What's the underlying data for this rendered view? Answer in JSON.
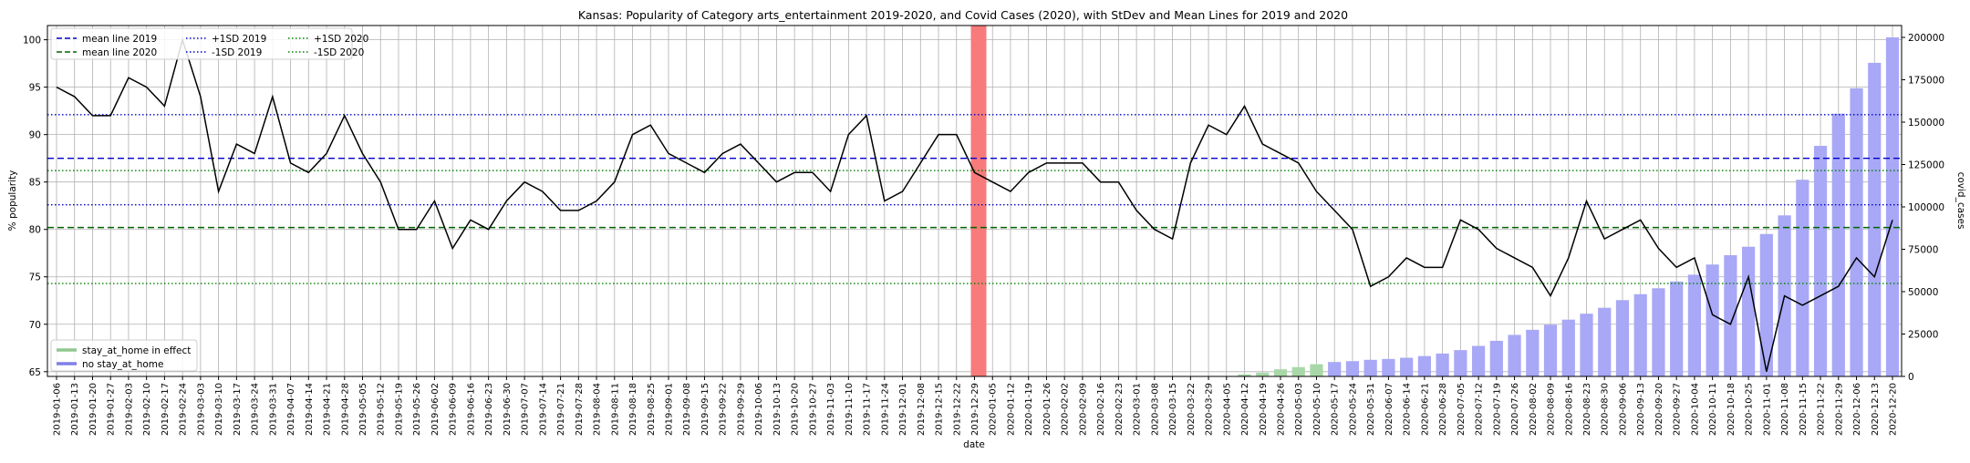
{
  "chart_data": {
    "type": "line",
    "title": "Kansas: Popularity of Category arts_entertainment 2019-2020, and Covid Cases (2020), with StDev and Mean Lines for 2019 and 2020",
    "xlabel": "date",
    "ylabel": "% popularity",
    "y2label": "covid_cases",
    "ylim": [
      64.5,
      101.5
    ],
    "y2lim": [
      0,
      207000
    ],
    "yticks": [
      65,
      70,
      75,
      80,
      85,
      90,
      95,
      100
    ],
    "y2ticks": [
      0,
      25000,
      50000,
      75000,
      100000,
      125000,
      150000,
      175000,
      200000
    ],
    "x": [
      "2019-01-06",
      "2019-01-13",
      "2019-01-20",
      "2019-01-27",
      "2019-02-03",
      "2019-02-10",
      "2019-02-17",
      "2019-02-24",
      "2019-03-03",
      "2019-03-10",
      "2019-03-17",
      "2019-03-24",
      "2019-03-31",
      "2019-04-07",
      "2019-04-14",
      "2019-04-21",
      "2019-04-28",
      "2019-05-05",
      "2019-05-12",
      "2019-05-19",
      "2019-05-26",
      "2019-06-02",
      "2019-06-09",
      "2019-06-16",
      "2019-06-23",
      "2019-06-30",
      "2019-07-07",
      "2019-07-14",
      "2019-07-21",
      "2019-07-28",
      "2019-08-04",
      "2019-08-11",
      "2019-08-18",
      "2019-08-25",
      "2019-09-01",
      "2019-09-08",
      "2019-09-15",
      "2019-09-22",
      "2019-09-29",
      "2019-10-06",
      "2019-10-13",
      "2019-10-20",
      "2019-10-27",
      "2019-11-03",
      "2019-11-10",
      "2019-11-17",
      "2019-11-24",
      "2019-12-01",
      "2019-12-08",
      "2019-12-15",
      "2019-12-22",
      "2019-12-29",
      "2020-01-05",
      "2020-01-12",
      "2020-01-19",
      "2020-01-26",
      "2020-02-02",
      "2020-02-09",
      "2020-02-16",
      "2020-02-23",
      "2020-03-01",
      "2020-03-08",
      "2020-03-15",
      "2020-03-22",
      "2020-03-29",
      "2020-04-05",
      "2020-04-12",
      "2020-04-19",
      "2020-04-26",
      "2020-05-03",
      "2020-05-10",
      "2020-05-17",
      "2020-05-24",
      "2020-05-31",
      "2020-06-07",
      "2020-06-14",
      "2020-06-21",
      "2020-06-28",
      "2020-07-05",
      "2020-07-12",
      "2020-07-19",
      "2020-07-26",
      "2020-08-02",
      "2020-08-09",
      "2020-08-16",
      "2020-08-23",
      "2020-08-30",
      "2020-09-06",
      "2020-09-13",
      "2020-09-20",
      "2020-09-27",
      "2020-10-04",
      "2020-10-11",
      "2020-10-18",
      "2020-10-25",
      "2020-11-01",
      "2020-11-08",
      "2020-11-15",
      "2020-11-22",
      "2020-11-29",
      "2020-12-06",
      "2020-12-13",
      "2020-12-20"
    ],
    "series": [
      {
        "name": "",
        "color": "#000000",
        "values": [
          95,
          94,
          92,
          92,
          96,
          95,
          93,
          100,
          94,
          84,
          89,
          88,
          94,
          87,
          86,
          88,
          92,
          88,
          85,
          80,
          80,
          83,
          78,
          81,
          80,
          83,
          85,
          84,
          82,
          82,
          83,
          85,
          90,
          91,
          88,
          87,
          86,
          88,
          89,
          87,
          85,
          86,
          86,
          84,
          90,
          92,
          83,
          84,
          87,
          90,
          90,
          86,
          85,
          84,
          86,
          87,
          87,
          87,
          85,
          85,
          82,
          80,
          79,
          87,
          91,
          90,
          93,
          89,
          88,
          87,
          84,
          82,
          80,
          74,
          75,
          77,
          76,
          76,
          81,
          80,
          78,
          77,
          76,
          73,
          77,
          83,
          79,
          80,
          81,
          78,
          76,
          77,
          71,
          70,
          75,
          65,
          73,
          72,
          73,
          74,
          77,
          75,
          81
        ]
      }
    ],
    "covid_cases": [
      0,
      0,
      0,
      0,
      0,
      0,
      0,
      0,
      0,
      0,
      0,
      0,
      0,
      0,
      0,
      0,
      0,
      0,
      0,
      0,
      0,
      0,
      0,
      0,
      0,
      0,
      0,
      0,
      0,
      0,
      0,
      0,
      0,
      0,
      0,
      0,
      0,
      0,
      0,
      0,
      0,
      0,
      0,
      0,
      0,
      0,
      0,
      0,
      0,
      0,
      0,
      0,
      0,
      0,
      0,
      0,
      0,
      0,
      0,
      0,
      0,
      0,
      0,
      0,
      0,
      0,
      1200,
      2200,
      4200,
      5500,
      7200,
      8500,
      9000,
      9800,
      10300,
      11000,
      12000,
      13500,
      15500,
      18000,
      21000,
      24500,
      27500,
      30500,
      33500,
      37000,
      40500,
      45000,
      48500,
      52000,
      56000,
      60000,
      66000,
      71500,
      76500,
      84000,
      95000,
      116000,
      136000,
      155000,
      170000,
      185000,
      200000
    ],
    "stay_at_home": [
      0,
      0,
      0,
      0,
      0,
      0,
      0,
      0,
      0,
      0,
      0,
      0,
      0,
      0,
      0,
      0,
      0,
      0,
      0,
      0,
      0,
      0,
      0,
      0,
      0,
      0,
      0,
      0,
      0,
      0,
      0,
      0,
      0,
      0,
      0,
      0,
      0,
      0,
      0,
      0,
      0,
      0,
      0,
      0,
      0,
      0,
      0,
      0,
      0,
      0,
      0,
      0,
      0,
      0,
      0,
      0,
      0,
      0,
      0,
      0,
      0,
      0,
      0,
      0,
      0,
      0,
      1,
      1,
      1,
      1,
      1,
      0,
      0,
      0,
      0,
      0,
      0,
      0,
      0,
      0,
      0,
      0,
      0,
      0,
      0,
      0,
      0,
      0,
      0,
      0,
      0,
      0,
      0,
      0,
      0,
      0,
      0,
      0,
      0,
      0,
      0,
      0,
      0
    ],
    "highlight_index": 51,
    "highlight_color": "#f77b7b",
    "hlines": [
      {
        "name": "mean line 2019",
        "value": 87.5,
        "color": "#0000cc",
        "style": "dashed"
      },
      {
        "name": "+1SD 2019",
        "value": 92.1,
        "color": "#0000cc",
        "style": "dotted"
      },
      {
        "name": "-1SD 2019",
        "value": 82.6,
        "color": "#0000cc",
        "style": "dotted"
      },
      {
        "name": "mean line 2020",
        "value": 80.2,
        "color": "#006400",
        "style": "dashed"
      },
      {
        "name": "+1SD 2020",
        "value": 86.2,
        "color": "#008000",
        "style": "dotted"
      },
      {
        "name": "-1SD 2020",
        "value": 74.3,
        "color": "#008000",
        "style": "dotted"
      }
    ],
    "legend_lines": {
      "placement": "top-left",
      "entries": [
        "mean line 2019",
        "mean line 2020",
        "+1SD 2019",
        "-1SD 2019",
        "+1SD 2020",
        "-1SD 2020"
      ]
    },
    "legend_bars": {
      "placement": "bottom-left",
      "entries": [
        {
          "label": "stay_at_home in effect",
          "color": "#90c890"
        },
        {
          "label": "no stay_at_home",
          "color": "#8080e8"
        }
      ]
    },
    "bar_colors": {
      "stay": "#a8d8a8",
      "no_stay": "#a8a8f6"
    },
    "grid": true
  }
}
